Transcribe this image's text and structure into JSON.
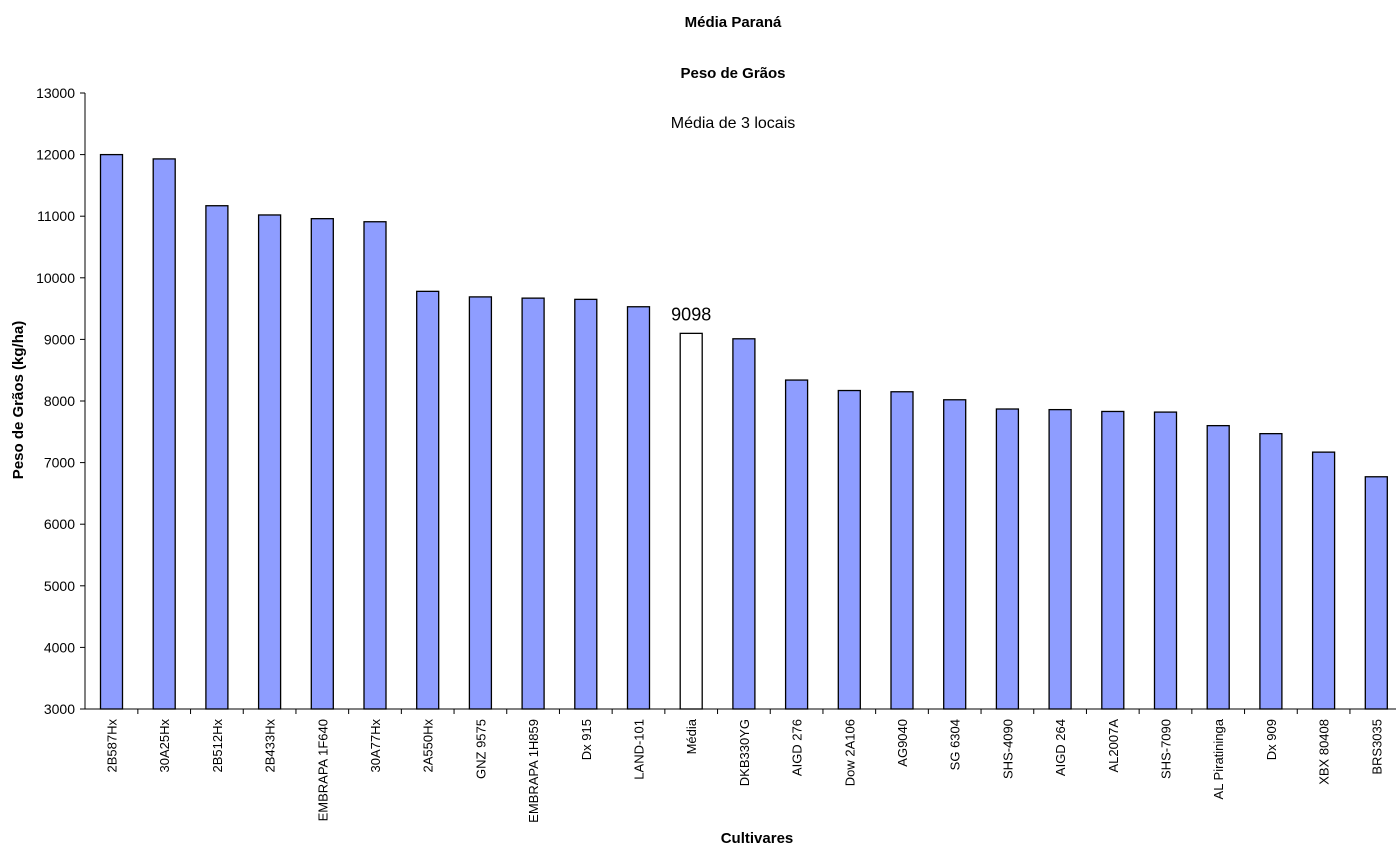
{
  "chart_data": {
    "type": "bar",
    "title": "Média Paraná",
    "subtitle": "Peso de Grãos",
    "annotation": "Média de 3 locais",
    "xlabel": "Cultivares",
    "ylabel": "Peso de Grãos (kg/ha)",
    "ylim": [
      3000,
      13000
    ],
    "yticks": [
      3000,
      4000,
      5000,
      6000,
      7000,
      8000,
      9000,
      10000,
      11000,
      12000,
      13000
    ],
    "grid": false,
    "legend": "none",
    "categories": [
      "2B587Hx",
      "30A25Hx",
      "2B512Hx",
      "2B433Hx",
      "EMBRAPA 1F640",
      "30A77Hx",
      "2A550Hx",
      "GNZ 9575",
      "EMBRAPA 1H859",
      "Dx 915",
      "LAND-101",
      "Média",
      "DKB330YG",
      "AIGD 276",
      "Dow 2A106",
      "AG9040",
      "SG 6304",
      "SHS-4090",
      "AIGD 264",
      "AL2007A",
      "SHS-7090",
      "AL Piratininga",
      "Dx 909",
      "XBX 80408",
      "BRS3035"
    ],
    "values": [
      12000,
      11930,
      11170,
      11020,
      10960,
      10910,
      9780,
      9690,
      9670,
      9650,
      9530,
      9098,
      9010,
      8340,
      8170,
      8150,
      8020,
      7870,
      7860,
      7830,
      7820,
      7600,
      7470,
      7170,
      6770
    ],
    "highlight_category": "Média",
    "data_label": "9098",
    "colors": {
      "bar": "#8e9dff",
      "highlight": "#ffffff",
      "outline": "#000000"
    }
  }
}
